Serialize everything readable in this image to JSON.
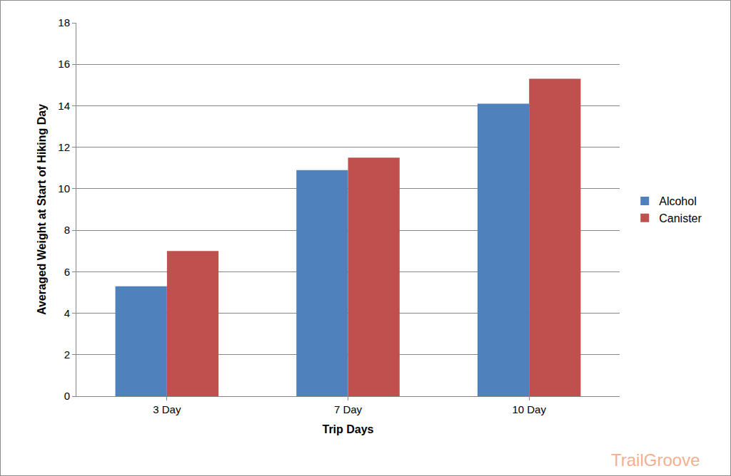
{
  "chart_data": {
    "type": "bar",
    "x_label": "Trip Days",
    "y_label": "Averaged Weight at Start of Hiking Day",
    "categories": [
      "3 Day",
      "7 Day",
      "10 Day"
    ],
    "series": [
      {
        "name": "Alcohol",
        "color": "#4f81bd",
        "values": [
          5.3,
          10.9,
          14.1
        ]
      },
      {
        "name": "Canister",
        "color": "#c0504d",
        "values": [
          7.0,
          11.5,
          15.3
        ]
      }
    ],
    "ylim": [
      0,
      18
    ],
    "yticks": [
      0,
      2,
      4,
      6,
      8,
      10,
      12,
      14,
      16,
      18
    ],
    "grid": true,
    "legend": "right",
    "annotations": [
      "TrailGroove"
    ]
  }
}
